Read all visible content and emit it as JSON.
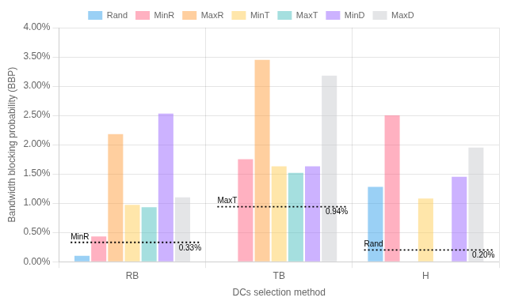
{
  "chart_data": {
    "type": "bar",
    "categories": [
      "RB",
      "TB",
      "H"
    ],
    "series": [
      {
        "name": "Rand",
        "values": [
          0.001,
          0.0,
          0.0128
        ]
      },
      {
        "name": "MinR",
        "values": [
          0.0043,
          0.0175,
          0.025
        ]
      },
      {
        "name": "MaxR",
        "values": [
          0.0218,
          0.0345,
          0.0
        ]
      },
      {
        "name": "MinT",
        "values": [
          0.0097,
          0.0163,
          0.0108
        ]
      },
      {
        "name": "MaxT",
        "values": [
          0.0093,
          0.0152,
          0.0
        ]
      },
      {
        "name": "MinD",
        "values": [
          0.0253,
          0.0163,
          0.0145
        ]
      },
      {
        "name": "MaxD",
        "values": [
          0.011,
          0.0318,
          0.0195
        ]
      }
    ],
    "annotations": [
      {
        "category": "RB",
        "y": 0.0033,
        "label": "MinR",
        "value_label": "0.33%"
      },
      {
        "category": "TB",
        "y": 0.0094,
        "label": "MaxT",
        "value_label": "0.94%"
      },
      {
        "category": "H",
        "y": 0.002,
        "label": "Rand",
        "value_label": "0.20%"
      }
    ],
    "xlabel": "DCs selection method",
    "ylabel": "Bandwidth blocking probability (BBP)",
    "ylim": [
      0.0,
      0.04
    ],
    "yticks": [
      {
        "value": 0.0,
        "label": "0.00%"
      },
      {
        "value": 0.005,
        "label": "0.50%"
      },
      {
        "value": 0.01,
        "label": "1.00%"
      },
      {
        "value": 0.015,
        "label": "1.50%"
      },
      {
        "value": 0.02,
        "label": "2.00%"
      },
      {
        "value": 0.025,
        "label": "2.50%"
      },
      {
        "value": 0.03,
        "label": "3.00%"
      },
      {
        "value": 0.035,
        "label": "3.50%"
      },
      {
        "value": 0.04,
        "label": "4.00%"
      }
    ],
    "grid": true,
    "legend": "top"
  }
}
